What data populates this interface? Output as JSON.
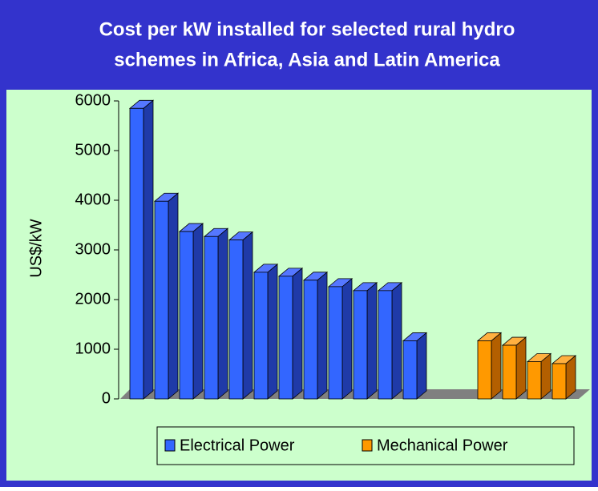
{
  "chart_data": {
    "type": "bar3d",
    "title": [
      "Cost per kW installed for selected rural hydro",
      "schemes in Africa, Asia and Latin America"
    ],
    "y_label": "US$/kW",
    "categories": [
      null,
      null,
      null,
      null,
      null,
      null,
      null,
      null,
      null,
      null,
      null,
      null,
      null,
      null,
      null,
      null,
      null,
      null
    ],
    "series": [
      {
        "name": "Electrical Power",
        "color": "#3366ff",
        "side": "#1f3aa8",
        "top": "#5577ff",
        "values": [
          5850,
          3980,
          3370,
          3270,
          3200,
          2550,
          2470,
          2390,
          2260,
          2180,
          2180,
          1170,
          null,
          null,
          null,
          null,
          null,
          null
        ]
      },
      {
        "name": "Mechanical Power",
        "color": "#ff9900",
        "side": "#b35f00",
        "top": "#ffb040",
        "values": [
          null,
          null,
          null,
          null,
          null,
          null,
          null,
          null,
          null,
          null,
          null,
          null,
          null,
          null,
          1170,
          1080,
          750,
          710
        ]
      }
    ],
    "ylim": [
      0,
      6000
    ],
    "yticks": [
      0,
      1000,
      2000,
      3000,
      4000,
      5000,
      6000
    ],
    "grid": false
  }
}
